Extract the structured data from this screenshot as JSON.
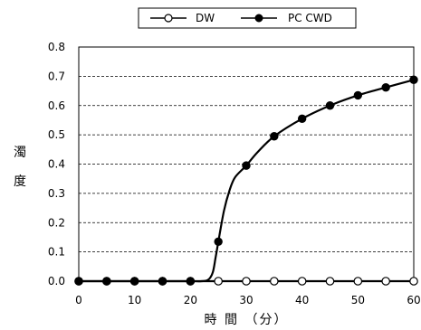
{
  "chart_data": {
    "type": "line",
    "title": "",
    "xlabel": "時 間 （分）",
    "ylabel": "濁度",
    "xlim": [
      0,
      60
    ],
    "ylim": [
      0,
      0.8
    ],
    "x_ticks": [
      "0",
      "10",
      "20",
      "30",
      "40",
      "50",
      "60"
    ],
    "y_ticks": [
      "0.0",
      "0.1",
      "0.2",
      "0.3",
      "0.4",
      "0.5",
      "0.6",
      "0.7",
      "0.8"
    ],
    "grid": "horizontal dashed",
    "legend_position": "top",
    "series": [
      {
        "name": "DW",
        "marker": "open-circle",
        "color": "#000000",
        "x": [
          0,
          5,
          10,
          15,
          20,
          25,
          30,
          35,
          40,
          45,
          50,
          55,
          60
        ],
        "y": [
          0,
          0,
          0,
          0,
          0,
          0,
          0,
          0,
          0,
          0,
          0,
          0,
          0
        ]
      },
      {
        "name": "PC CWD",
        "marker": "filled-circle",
        "color": "#000000",
        "x": [
          0,
          5,
          10,
          15,
          20,
          25,
          30,
          35,
          40,
          45,
          50,
          55,
          60
        ],
        "y": [
          0,
          0,
          0,
          0,
          0,
          0.135,
          0.395,
          0.495,
          0.555,
          0.6,
          0.635,
          0.662,
          0.688
        ]
      }
    ]
  }
}
